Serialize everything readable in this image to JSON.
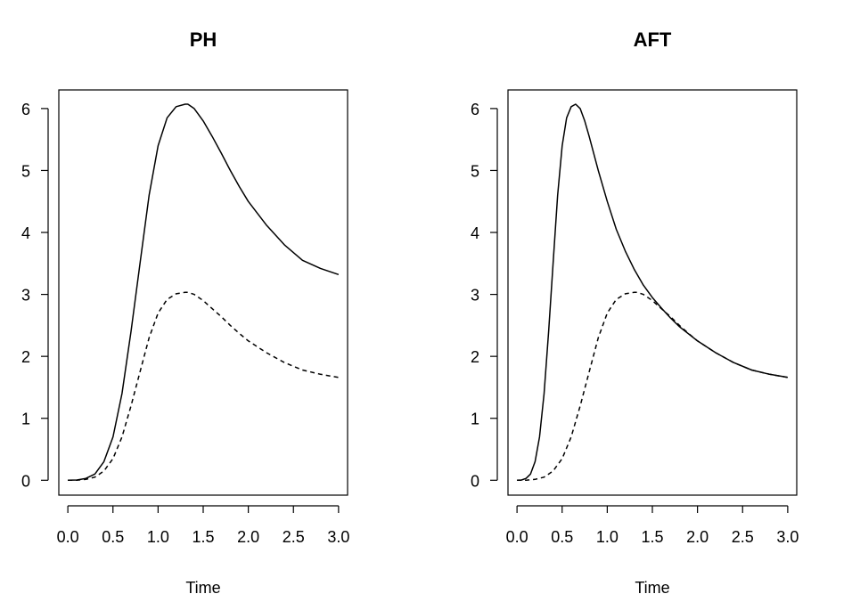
{
  "chart_data": [
    {
      "type": "line",
      "title": "PH",
      "xlabel": "Time",
      "ylabel": "",
      "xlim": [
        -0.1,
        3.1
      ],
      "ylim": [
        -0.24,
        6.3
      ],
      "x_ticks": [
        "0.0",
        "0.5",
        "1.0",
        "1.5",
        "2.0",
        "2.5",
        "3.0"
      ],
      "y_ticks": [
        "0",
        "1",
        "2",
        "3",
        "4",
        "5",
        "6"
      ],
      "grid": false,
      "series": [
        {
          "style": "solid",
          "x": [
            0,
            0.1,
            0.2,
            0.3,
            0.4,
            0.5,
            0.6,
            0.7,
            0.8,
            0.9,
            1.0,
            1.1,
            1.2,
            1.3,
            1.33,
            1.4,
            1.5,
            1.6,
            1.7,
            1.8,
            1.9,
            2.0,
            2.2,
            2.4,
            2.6,
            2.8,
            3.0
          ],
          "y": [
            0,
            0.004,
            0.03,
            0.1,
            0.3,
            0.7,
            1.4,
            2.4,
            3.5,
            4.6,
            5.4,
            5.85,
            6.03,
            6.07,
            6.07,
            6.0,
            5.8,
            5.55,
            5.28,
            5.0,
            4.74,
            4.5,
            4.12,
            3.8,
            3.55,
            3.42,
            3.32
          ]
        },
        {
          "style": "dashed",
          "x": [
            0,
            0.1,
            0.2,
            0.3,
            0.4,
            0.5,
            0.6,
            0.7,
            0.8,
            0.9,
            1.0,
            1.1,
            1.2,
            1.3,
            1.33,
            1.4,
            1.5,
            1.6,
            1.7,
            1.8,
            1.9,
            2.0,
            2.2,
            2.4,
            2.6,
            2.8,
            3.0
          ],
          "y": [
            0,
            0.002,
            0.015,
            0.05,
            0.15,
            0.35,
            0.7,
            1.2,
            1.75,
            2.3,
            2.7,
            2.92,
            3.01,
            3.035,
            3.035,
            3.0,
            2.9,
            2.77,
            2.64,
            2.5,
            2.37,
            2.25,
            2.06,
            1.9,
            1.78,
            1.71,
            1.66
          ]
        }
      ]
    },
    {
      "type": "line",
      "title": "AFT",
      "xlabel": "Time",
      "ylabel": "",
      "xlim": [
        -0.1,
        3.1
      ],
      "ylim": [
        -0.24,
        6.3
      ],
      "x_ticks": [
        "0.0",
        "0.5",
        "1.0",
        "1.5",
        "2.0",
        "2.5",
        "3.0"
      ],
      "y_ticks": [
        "0",
        "1",
        "2",
        "3",
        "4",
        "5",
        "6"
      ],
      "grid": false,
      "series": [
        {
          "style": "solid",
          "x": [
            0,
            0.05,
            0.1,
            0.15,
            0.2,
            0.25,
            0.3,
            0.35,
            0.4,
            0.45,
            0.5,
            0.55,
            0.6,
            0.65,
            0.7,
            0.75,
            0.8,
            0.9,
            1.0,
            1.1,
            1.2,
            1.3,
            1.4,
            1.5,
            1.6,
            1.7,
            1.8,
            2.0,
            2.2,
            2.4,
            2.6,
            2.8,
            3.0
          ],
          "y": [
            0,
            0.004,
            0.03,
            0.1,
            0.3,
            0.7,
            1.4,
            2.4,
            3.5,
            4.6,
            5.4,
            5.85,
            6.03,
            6.07,
            6.0,
            5.8,
            5.55,
            5.0,
            4.5,
            4.05,
            3.7,
            3.4,
            3.15,
            2.95,
            2.78,
            2.62,
            2.48,
            2.25,
            2.06,
            1.9,
            1.78,
            1.71,
            1.66
          ]
        },
        {
          "style": "dashed",
          "x": [
            0,
            0.1,
            0.2,
            0.3,
            0.4,
            0.5,
            0.6,
            0.7,
            0.8,
            0.9,
            1.0,
            1.1,
            1.2,
            1.3,
            1.33,
            1.4,
            1.5,
            1.6,
            1.7,
            1.8,
            1.9,
            2.0,
            2.2,
            2.4,
            2.6,
            2.8,
            3.0
          ],
          "y": [
            0,
            0.002,
            0.015,
            0.05,
            0.15,
            0.35,
            0.7,
            1.2,
            1.75,
            2.3,
            2.7,
            2.92,
            3.01,
            3.035,
            3.035,
            3.0,
            2.9,
            2.77,
            2.64,
            2.5,
            2.37,
            2.25,
            2.06,
            1.9,
            1.78,
            1.71,
            1.66
          ]
        }
      ]
    }
  ]
}
